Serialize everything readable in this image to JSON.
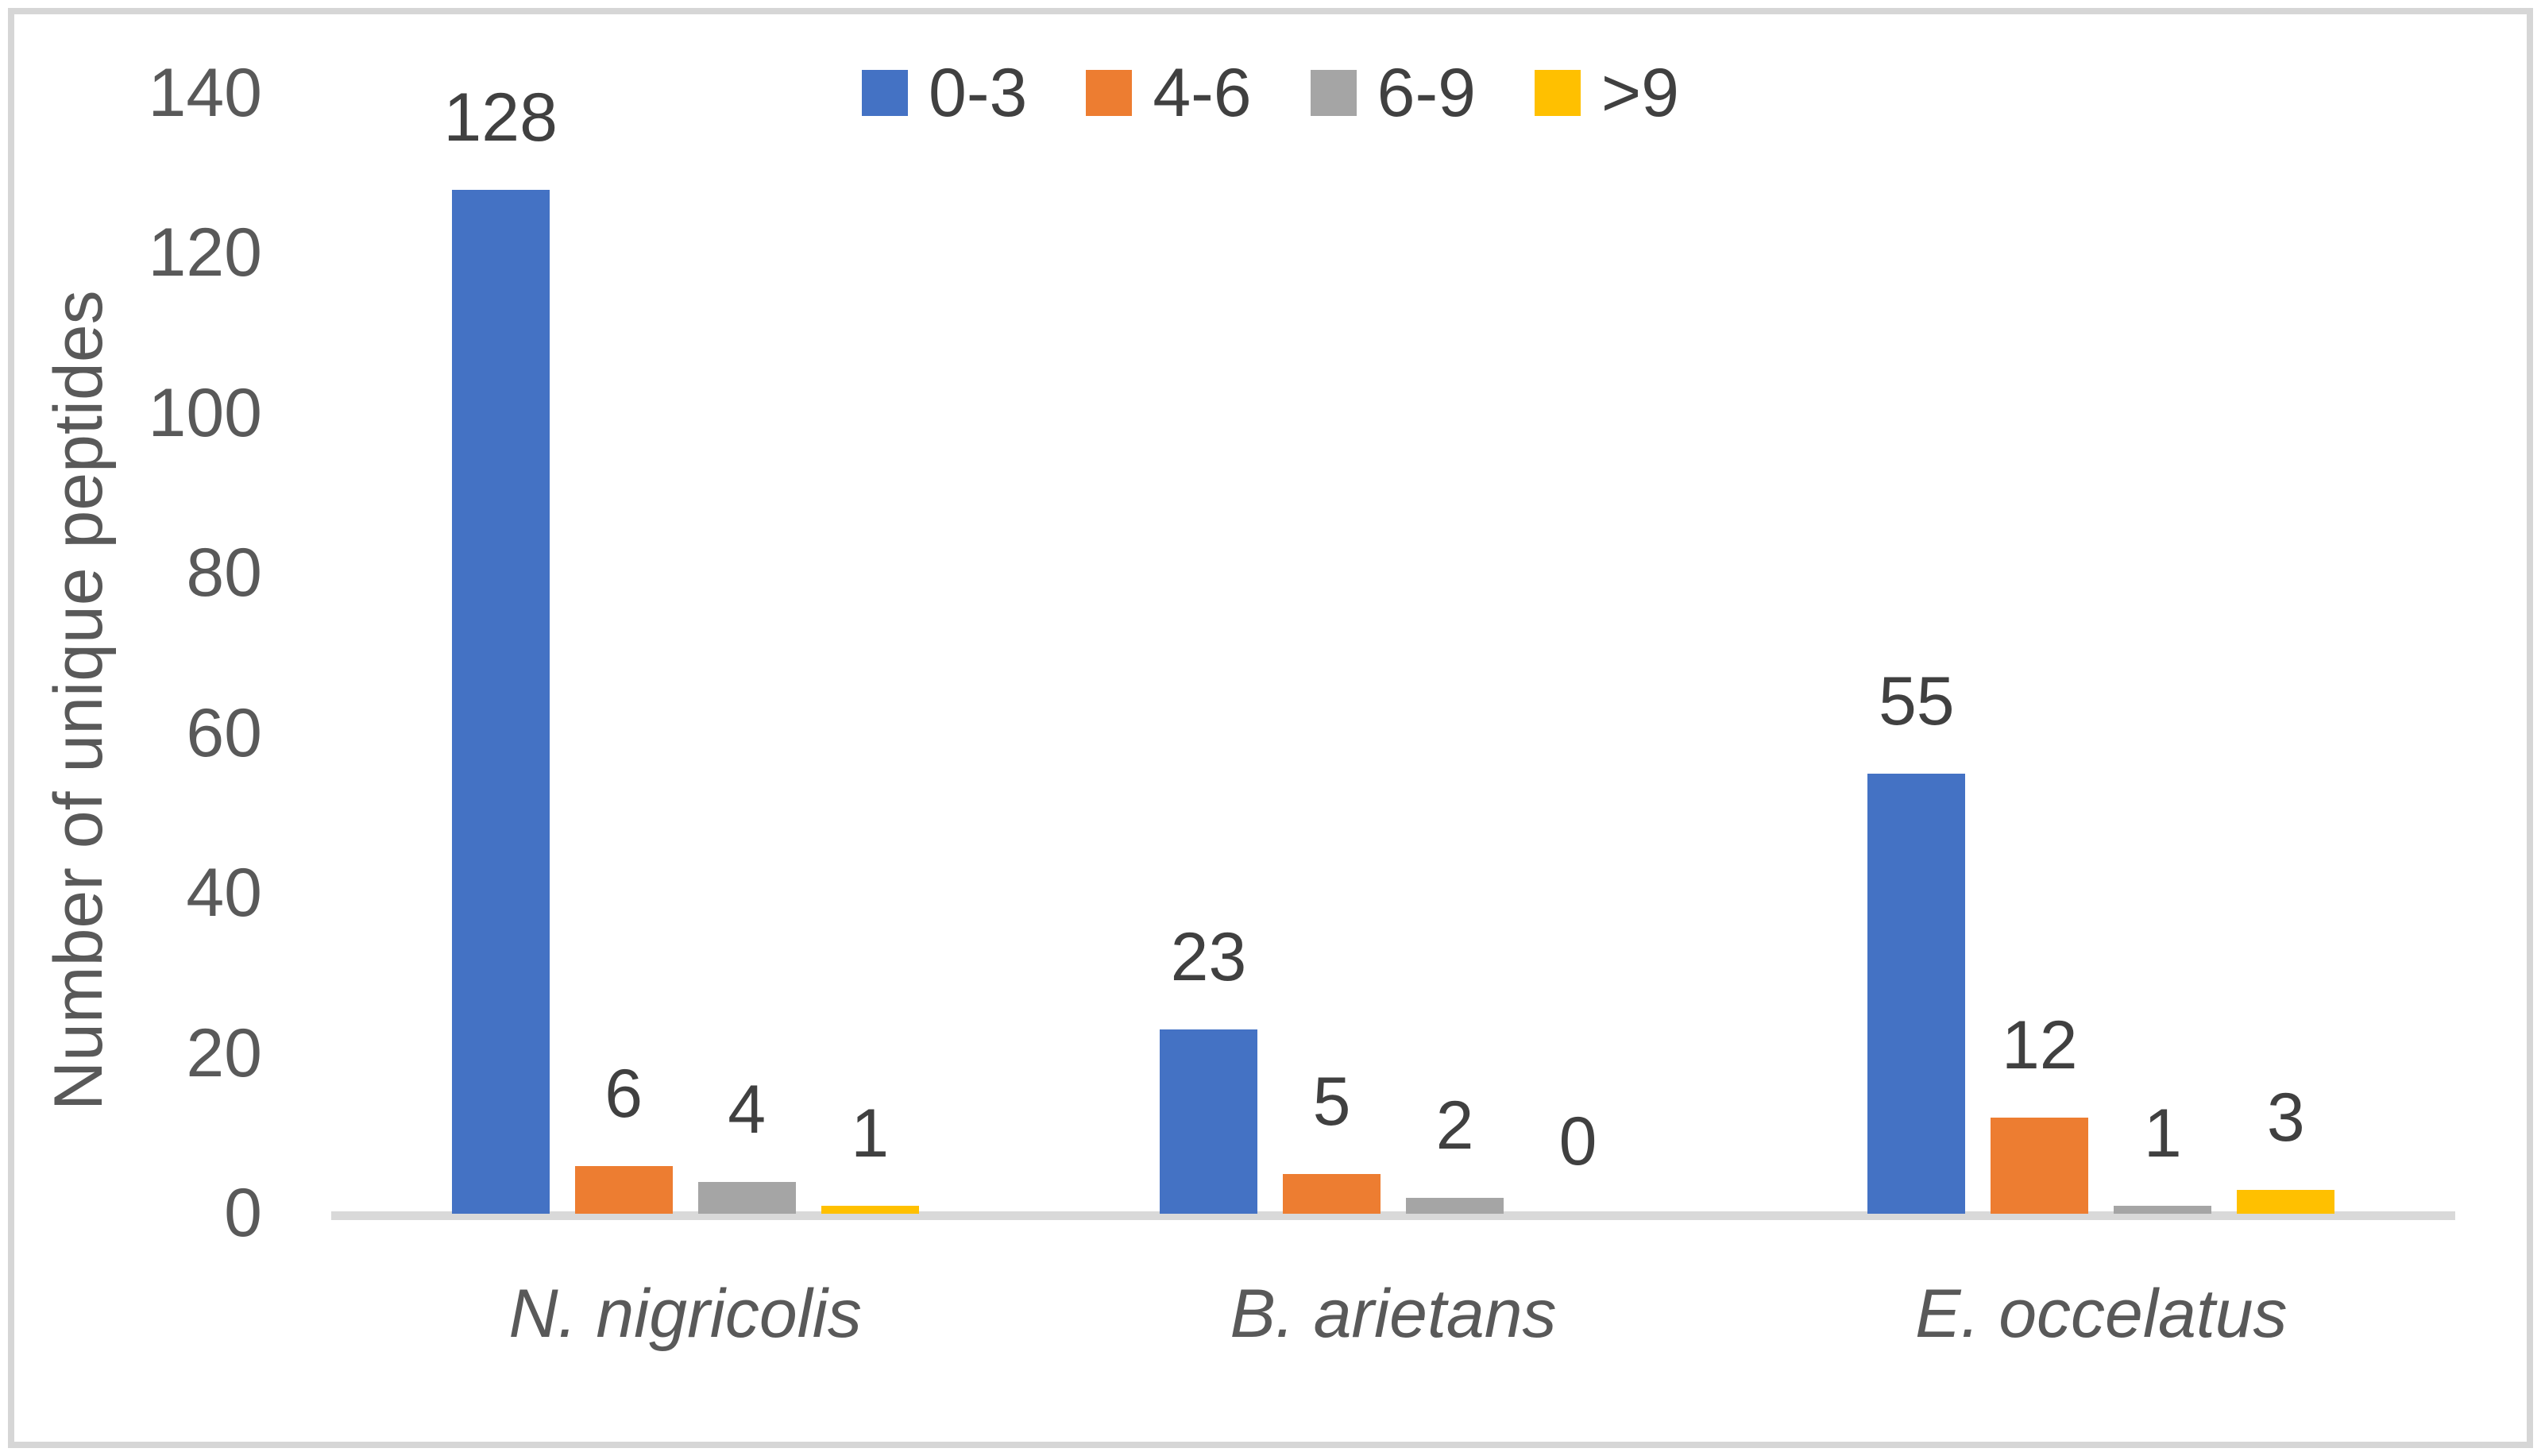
{
  "chart_data": {
    "type": "bar",
    "title": "",
    "xlabel": "",
    "ylabel": "Number of unique peptides",
    "ylim": [
      0,
      140
    ],
    "yticks": [
      0,
      20,
      40,
      60,
      80,
      100,
      120,
      140
    ],
    "grid": false,
    "legend_position": "top",
    "data_labels": true,
    "categories": [
      "N. nigricolis",
      "B. arietans",
      "E. occelatus"
    ],
    "series": [
      {
        "name": "0-3",
        "color": "#4472C4",
        "values": [
          128,
          23,
          55
        ]
      },
      {
        "name": "4-6",
        "color": "#ED7D31",
        "values": [
          6,
          5,
          12
        ]
      },
      {
        "name": "6-9",
        "color": "#A5A5A5",
        "values": [
          4,
          2,
          1
        ]
      },
      {
        "name": ">9",
        "color": "#FFC000",
        "values": [
          1,
          0,
          3
        ]
      }
    ],
    "colors": {
      "axis_line": "#D9D9D9",
      "frame_border": "#D6D6D6",
      "tick_text": "#595959",
      "data_label_text": "#404040",
      "category_text": "#595959"
    }
  }
}
